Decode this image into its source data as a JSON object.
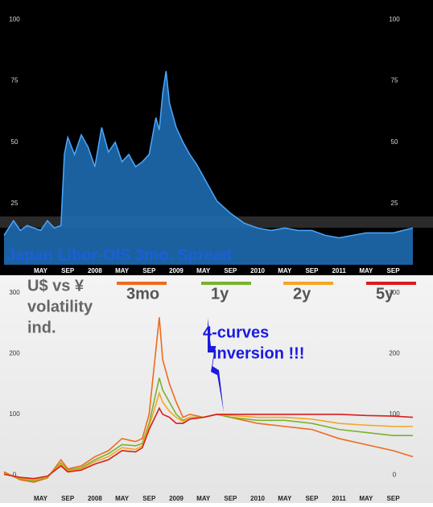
{
  "chart_data": [
    {
      "type": "area",
      "title": "Japan Libor-OIS 3mo. Spread",
      "color": "#1f6cb0",
      "line_color": "#4aa8ff",
      "x": [
        -1.4,
        0,
        1,
        2,
        3,
        4,
        5,
        6,
        7,
        7.5,
        8,
        9,
        10,
        11,
        12,
        13,
        14,
        15,
        16,
        17,
        18,
        19,
        20,
        21,
        21.5,
        22,
        22.5,
        23,
        24,
        25,
        26,
        27,
        28,
        29,
        30,
        32,
        34,
        36,
        38,
        40,
        42,
        44,
        46,
        48,
        50,
        52,
        54,
        56,
        58.9
      ],
      "values": [
        12,
        18,
        14,
        16,
        15,
        14,
        18,
        15,
        16,
        45,
        52,
        45,
        53,
        48,
        40,
        56,
        46,
        50,
        42,
        45,
        40,
        42,
        45,
        60,
        55,
        70,
        79,
        66,
        56,
        50,
        45,
        41,
        36,
        31,
        26,
        21,
        17,
        15,
        14,
        15,
        14,
        14,
        12,
        11,
        12,
        13,
        13,
        13,
        15
      ],
      "xlim": [
        -1.4,
        58.9
      ],
      "xticks": [
        {
          "value": 4,
          "label": "MAY"
        },
        {
          "value": 8,
          "label": "SEP"
        },
        {
          "value": 12,
          "label": "2008"
        },
        {
          "value": 16,
          "label": "MAY"
        },
        {
          "value": 20,
          "label": "SEP"
        },
        {
          "value": 24,
          "label": "2009"
        },
        {
          "value": 28,
          "label": "MAY"
        },
        {
          "value": 32,
          "label": "SEP"
        },
        {
          "value": 36,
          "label": "2010"
        },
        {
          "value": 40,
          "label": "MAY"
        },
        {
          "value": 44,
          "label": "SEP"
        },
        {
          "value": 48,
          "label": "2011"
        },
        {
          "value": 52,
          "label": "MAY"
        },
        {
          "value": 56,
          "label": "SEP"
        }
      ],
      "ylim": [
        0,
        108
      ],
      "yticks": [
        25,
        50,
        75,
        100
      ]
    },
    {
      "type": "line",
      "note_lines": [
        "U$ vs ¥",
        "volatility",
        "ind."
      ],
      "callout_lines": [
        "4-curves",
        "inversion !!!"
      ],
      "x": [
        -1.4,
        1,
        3,
        5,
        7,
        8,
        10,
        12,
        14,
        16,
        18,
        19,
        20,
        21.5,
        22,
        23,
        24,
        25,
        26,
        28,
        30,
        32,
        36,
        40,
        44,
        48,
        52,
        56,
        58.9
      ],
      "series": [
        {
          "name": "3mo",
          "color": "#f06a1e",
          "values": [
            5,
            -8,
            -12,
            -5,
            25,
            10,
            15,
            30,
            40,
            60,
            55,
            60,
            100,
            260,
            190,
            150,
            120,
            95,
            100,
            95,
            100,
            95,
            85,
            80,
            75,
            60,
            50,
            40,
            30
          ]
        },
        {
          "name": "1y",
          "color": "#7ab22e",
          "values": [
            3,
            -6,
            -10,
            -4,
            20,
            8,
            12,
            25,
            35,
            50,
            48,
            52,
            85,
            160,
            140,
            120,
            100,
            90,
            95,
            95,
            100,
            95,
            90,
            90,
            85,
            75,
            70,
            65,
            65
          ]
        },
        {
          "name": "2y",
          "color": "#f5a623",
          "values": [
            2,
            -5,
            -8,
            -3,
            18,
            6,
            10,
            22,
            30,
            45,
            42,
            48,
            80,
            135,
            120,
            105,
            95,
            88,
            95,
            95,
            100,
            98,
            95,
            95,
            92,
            85,
            82,
            80,
            80
          ]
        },
        {
          "name": "5y",
          "color": "#d91c1c",
          "values": [
            1,
            -4,
            -6,
            -2,
            15,
            5,
            8,
            18,
            25,
            40,
            38,
            45,
            75,
            110,
            100,
            95,
            85,
            85,
            92,
            95,
            100,
            100,
            100,
            100,
            100,
            100,
            98,
            97,
            95
          ]
        }
      ],
      "xlim": [
        -1.4,
        58.9
      ],
      "xticks": [
        {
          "value": 4,
          "label": "MAY"
        },
        {
          "value": 8,
          "label": "SEP"
        },
        {
          "value": 12,
          "label": "2008"
        },
        {
          "value": 16,
          "label": "MAY"
        },
        {
          "value": 20,
          "label": "SEP"
        },
        {
          "value": 24,
          "label": "2009"
        },
        {
          "value": 28,
          "label": "MAY"
        },
        {
          "value": 32,
          "label": "SEP"
        },
        {
          "value": 36,
          "label": "2010"
        },
        {
          "value": 40,
          "label": "MAY"
        },
        {
          "value": 44,
          "label": "SEP"
        },
        {
          "value": 48,
          "label": "2011"
        },
        {
          "value": 52,
          "label": "MAY"
        },
        {
          "value": 56,
          "label": "SEP"
        }
      ],
      "ylim": [
        -29,
        328
      ],
      "yticks": [
        0,
        100,
        200,
        300
      ]
    }
  ]
}
